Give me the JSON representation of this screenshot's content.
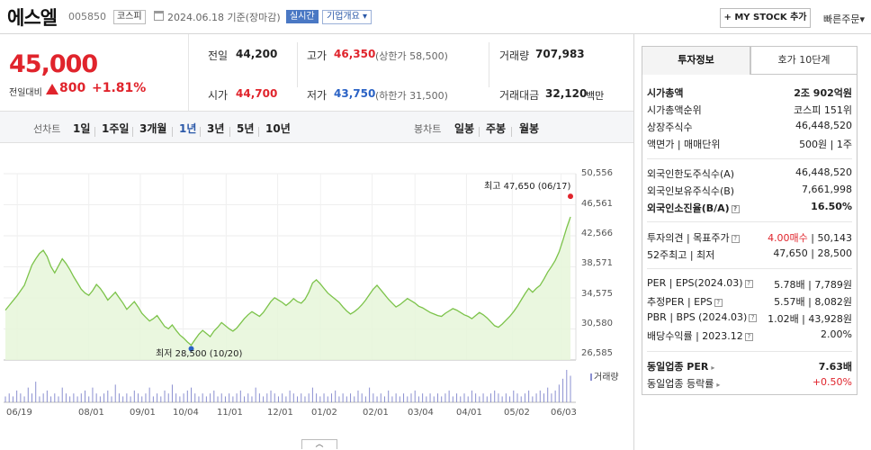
{
  "header": {
    "company": "에스엘",
    "code": "005850",
    "market": "코스피",
    "date_text": "2024.06.18 기준(장마감)",
    "realtime": "실시간",
    "company_info": "기업개요",
    "my_stock": "+ MY STOCK 추가",
    "quick_order": "빠른주문"
  },
  "price": {
    "current": "45,000",
    "vs_label": "전일대비",
    "change": "800",
    "change_pct": "+1.81%",
    "up_color": "#e0242c",
    "down_color": "#2a62c5"
  },
  "summary": {
    "prev_close_label": "전일",
    "prev_close": "44,200",
    "open_label": "시가",
    "open": "44,700",
    "high_label": "고가",
    "high": "46,350",
    "upper_limit": "(상한가 58,500)",
    "low_label": "저가",
    "low": "43,750",
    "lower_limit": "(하한가 31,500)",
    "volume_label": "거래량",
    "volume": "707,983",
    "amount_label": "거래대금",
    "amount": "32,120",
    "amount_unit": "백만"
  },
  "period_tabs": {
    "line_label": "선차트",
    "line_items": [
      "1일",
      "1주일",
      "3개월",
      "1년",
      "3년",
      "5년",
      "10년"
    ],
    "active": "1년",
    "candle_label": "봉차트",
    "candle_items": [
      "일봉",
      "주봉",
      "월봉"
    ]
  },
  "chart_data": {
    "type": "area",
    "yticks": [
      "50,556",
      "46,561",
      "42,566",
      "38,571",
      "34,575",
      "30,580",
      "26,585"
    ],
    "ytick_values": [
      50556,
      46561,
      42566,
      38571,
      34575,
      30580,
      26585
    ],
    "ylim": [
      26585,
      50556
    ],
    "xticks": [
      "06/19",
      "08/01",
      "09/01",
      "10/04",
      "11/01",
      "12/01",
      "01/02",
      "02/01",
      "03/04",
      "04/01",
      "05/02",
      "06/03"
    ],
    "high_label": "최고 47,650 (06/17)",
    "low_label": "최저 28,500 (10/20)",
    "volume_legend": "거래량",
    "line_color": "#7cc34a",
    "fill_color": "#e6f6d9",
    "high_color": "#e0242c",
    "low_color": "#2a62c5",
    "price_series": [
      33000,
      33600,
      34200,
      34800,
      35500,
      36200,
      37500,
      38800,
      39600,
      40300,
      40700,
      39900,
      38600,
      37800,
      38700,
      39600,
      39000,
      38200,
      37300,
      36500,
      35700,
      35200,
      34900,
      35500,
      36300,
      35800,
      35100,
      34300,
      34800,
      35300,
      34600,
      33900,
      33100,
      33600,
      34100,
      33400,
      32600,
      32100,
      31600,
      31900,
      32300,
      31600,
      30900,
      30600,
      31100,
      30400,
      29800,
      29400,
      28900,
      28500,
      29200,
      29900,
      30400,
      30000,
      29600,
      30300,
      30800,
      31400,
      31000,
      30600,
      30300,
      30700,
      31300,
      31900,
      32400,
      32800,
      32500,
      32200,
      32700,
      33400,
      34100,
      34600,
      34300,
      34000,
      33600,
      34000,
      34500,
      34100,
      33900,
      34400,
      35300,
      36500,
      36900,
      36400,
      35800,
      35200,
      34800,
      34400,
      34000,
      33400,
      32900,
      32500,
      32800,
      33200,
      33700,
      34300,
      35000,
      35700,
      36200,
      35600,
      35000,
      34400,
      33900,
      33400,
      33700,
      34100,
      34500,
      34200,
      33900,
      33500,
      33300,
      33000,
      32700,
      32500,
      32300,
      32200,
      32600,
      32900,
      33200,
      33000,
      32700,
      32400,
      32200,
      31900,
      32300,
      32700,
      32400,
      32000,
      31500,
      31000,
      30800,
      31200,
      31700,
      32200,
      32800,
      33500,
      34300,
      35100,
      35800,
      35300,
      35800,
      36200,
      37000,
      37900,
      38600,
      39400,
      40500,
      42000,
      43600,
      45000
    ],
    "volume_series": [
      2,
      3,
      2,
      4,
      3,
      2,
      5,
      3,
      7,
      2,
      3,
      4,
      2,
      3,
      2,
      5,
      3,
      2,
      3,
      2,
      3,
      4,
      2,
      5,
      3,
      2,
      3,
      4,
      2,
      6,
      3,
      2,
      3,
      2,
      4,
      3,
      2,
      3,
      5,
      2,
      3,
      2,
      4,
      3,
      6,
      3,
      2,
      3,
      4,
      5,
      3,
      2,
      3,
      2,
      3,
      4,
      2,
      3,
      2,
      3,
      2,
      3,
      4,
      2,
      3,
      2,
      5,
      3,
      2,
      3,
      4,
      3,
      2,
      3,
      2,
      4,
      3,
      2,
      3,
      2,
      3,
      5,
      3,
      2,
      3,
      2,
      3,
      4,
      2,
      3,
      2,
      3,
      2,
      4,
      3,
      2,
      5,
      3,
      2,
      3,
      2,
      4,
      2,
      3,
      2,
      3,
      2,
      3,
      4,
      2,
      3,
      2,
      3,
      2,
      3,
      2,
      3,
      4,
      2,
      3,
      2,
      3,
      2,
      4,
      3,
      2,
      3,
      2,
      3,
      4,
      3,
      2,
      3,
      2,
      4,
      3,
      2,
      3,
      4,
      2,
      3,
      4,
      3,
      5,
      3,
      4,
      6,
      8,
      11,
      9
    ]
  },
  "invest_panel": {
    "tab_active": "투자정보",
    "tab_other": "호가 10단계",
    "market_cap_label": "시가총액",
    "market_cap": "2조 902억원",
    "market_cap_rank_label": "시가총액순위",
    "market_cap_rank": "코스피 151위",
    "shares_label": "상장주식수",
    "shares": "46,448,520",
    "par_label": "액면가 | 매매단위",
    "par": "500원 | 1주",
    "foreign_limit_label": "외국인한도주식수(A)",
    "foreign_limit": "46,448,520",
    "foreign_hold_label": "외국인보유주식수(B)",
    "foreign_hold": "7,661,998",
    "foreign_rate_label": "외국인소진율(B/A)",
    "foreign_rate": "16.50%",
    "opinion_label": "투자의견 | 목표주가",
    "opinion": "4.00매수",
    "target": "50,143",
    "wk52_label": "52주최고 | 최저",
    "wk52": "47,650 | 28,500",
    "per_label": "PER | EPS(2024.03)",
    "per": "5.78배 | 7,789원",
    "est_per_label": "추정PER | EPS",
    "est_per": "5.57배 | 8,082원",
    "pbr_label": "PBR | BPS (2024.03)",
    "pbr": "1.02배 | 43,928원",
    "div_label": "배당수익률 | 2023.12",
    "div": "2.00%",
    "sector_per_label": "동일업종 PER",
    "sector_per": "7.63배",
    "sector_rate_label": "동일업종 등락률",
    "sector_rate": "+0.50%"
  },
  "icons": [
    "calendar-icon",
    "help-icon",
    "arrow-right-icon",
    "up-triangle-icon",
    "collapse-icon"
  ]
}
